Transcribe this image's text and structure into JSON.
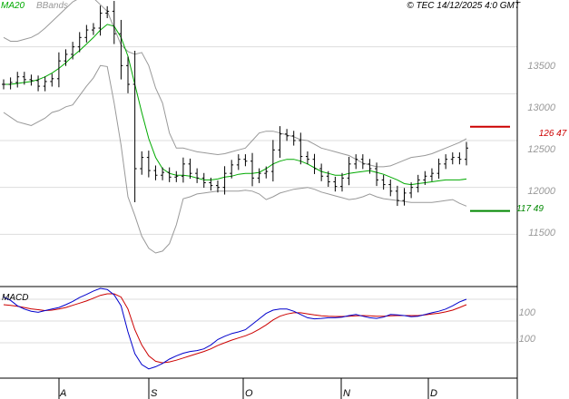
{
  "header": {
    "ma_label": "MA20",
    "bbands_label": "BBands",
    "copyright": "© TEC 14/12/2025 4:0 GMT"
  },
  "price_panel": {
    "y_ticks": [
      "13500",
      "13000",
      "12500",
      "12000",
      "11500"
    ],
    "resistance": {
      "value": 12647,
      "label": "126 47",
      "color": "#cc0000"
    },
    "support": {
      "value": 11749,
      "label": "117 49",
      "color": "#008800"
    }
  },
  "macd_panel": {
    "label": "MACD",
    "y_ticks": [
      "100",
      "-100"
    ]
  },
  "x_axis": {
    "months": [
      "A",
      "S",
      "O",
      "N",
      "D"
    ]
  },
  "colors": {
    "bar": "#000000",
    "ma20": "#00aa00",
    "bbands": "#999999",
    "grid": "#dddddd",
    "macd": "#0000cc",
    "signal": "#cc0000"
  },
  "chart_data": [
    {
      "type": "line",
      "title": "",
      "y_unit": "price",
      "ylim": [
        11000,
        14000
      ],
      "x": [
        0,
        2,
        4,
        6,
        8,
        10,
        12,
        14,
        16,
        18,
        20,
        22,
        24,
        26,
        28,
        30,
        32,
        34,
        36,
        38,
        40,
        42,
        44,
        46,
        48,
        50,
        52,
        54,
        56,
        58,
        60,
        62,
        64,
        66,
        68,
        70,
        72,
        74,
        76,
        78,
        80,
        82,
        84,
        86,
        88,
        90,
        92,
        94,
        96,
        98,
        100,
        102,
        104,
        106,
        108,
        110,
        112,
        114,
        116,
        118,
        120,
        122,
        124,
        126,
        128,
        130,
        132,
        134
      ],
      "series": [
        {
          "name": "",
          "values": [
            13100,
            13120,
            13180,
            13150,
            13140,
            13080,
            13130,
            13160,
            13350,
            13420,
            13500,
            13600,
            13680,
            13700,
            13860,
            13880,
            13640,
            13300,
            13100,
            12200,
            12320,
            12180,
            12130,
            12160,
            12110,
            12120,
            12250,
            12150,
            12100,
            12050,
            12020,
            12000,
            12150,
            12240,
            12300,
            12280,
            12100,
            12150,
            12170,
            12400,
            12570,
            12550,
            12500,
            12330,
            12300,
            12200,
            12120,
            12060,
            12010,
            12100,
            12250,
            12300,
            12250,
            12200,
            12080,
            12030,
            11960,
            11860,
            11940,
            12000,
            12080,
            12120,
            12150,
            12250,
            12300,
            12320,
            12300,
            12420
          ]
        },
        {
          "name": "MA20",
          "values": [
            13100,
            13100,
            13110,
            13120,
            13130,
            13150,
            13180,
            13220,
            13270,
            13330,
            13400,
            13460,
            13530,
            13600,
            13680,
            13740,
            13720,
            13600,
            13400,
            13100,
            12800,
            12520,
            12320,
            12200,
            12150,
            12130,
            12130,
            12120,
            12100,
            12080,
            12080,
            12090,
            12110,
            12120,
            12140,
            12150,
            12150,
            12160,
            12200,
            12250,
            12280,
            12300,
            12300,
            12280,
            12250,
            12210,
            12170,
            12150,
            12130,
            12130,
            12150,
            12160,
            12170,
            12180,
            12160,
            12140,
            12110,
            12080,
            12040,
            12030,
            12040,
            12050,
            12060,
            12070,
            12080,
            12080,
            12080,
            12090
          ]
        },
        {
          "name": "BBands",
          "values": [
            13600,
            13560,
            13560,
            13580,
            13600,
            13640,
            13700,
            13770,
            13840,
            13910,
            13980,
            14020,
            14040,
            14020,
            13950,
            13880,
            13700,
            13520,
            13450,
            13420,
            13440,
            13300,
            13060,
            12900,
            12580,
            12420,
            12420,
            12400,
            12380,
            12370,
            12360,
            12350,
            12360,
            12380,
            12400,
            12420,
            12500,
            12580,
            12600,
            12600,
            12580,
            12560,
            12540,
            12510,
            12500,
            12460,
            12420,
            12400,
            12380,
            12360,
            12340,
            12300,
            12260,
            12240,
            12220,
            12220,
            12230,
            12260,
            12290,
            12320,
            12330,
            12340,
            12360,
            12390,
            12420,
            12450,
            12480,
            12520
          ]
        },
        {
          "name": "BBands",
          "values": [
            12800,
            12750,
            12700,
            12680,
            12660,
            12700,
            12740,
            12800,
            12820,
            12860,
            12880,
            12980,
            13080,
            13170,
            13300,
            13290,
            12900,
            12450,
            11900,
            11700,
            11480,
            11350,
            11300,
            11320,
            11400,
            11600,
            11880,
            11900,
            11930,
            11940,
            11950,
            11960,
            11960,
            11960,
            11960,
            11970,
            11960,
            11930,
            11870,
            11900,
            11940,
            11960,
            11980,
            11990,
            12000,
            11980,
            11950,
            11930,
            11910,
            11890,
            11870,
            11880,
            11900,
            11930,
            11900,
            11880,
            11870,
            11860,
            11850,
            11840,
            11840,
            11840,
            11840,
            11850,
            11860,
            11870,
            11830,
            11800
          ]
        }
      ]
    },
    {
      "type": "line",
      "title": "MACD",
      "ylim": [
        -250,
        150
      ],
      "x": [
        0,
        2,
        4,
        6,
        8,
        10,
        12,
        14,
        16,
        18,
        20,
        22,
        24,
        26,
        28,
        30,
        32,
        34,
        36,
        38,
        40,
        42,
        44,
        46,
        48,
        50,
        52,
        54,
        56,
        58,
        60,
        62,
        64,
        66,
        68,
        70,
        72,
        74,
        76,
        78,
        80,
        82,
        84,
        86,
        88,
        90,
        92,
        94,
        96,
        98,
        100,
        102,
        104,
        106,
        108,
        110,
        112,
        114,
        116,
        118,
        120,
        122,
        124,
        126,
        128,
        130,
        132,
        134
      ],
      "series": [
        {
          "name": "",
          "values": [
            110,
            95,
            70,
            55,
            45,
            40,
            48,
            55,
            62,
            75,
            90,
            108,
            122,
            138,
            150,
            145,
            120,
            70,
            -50,
            -150,
            -200,
            -220,
            -210,
            -195,
            -175,
            -160,
            -148,
            -140,
            -136,
            -128,
            -110,
            -85,
            -70,
            -58,
            -50,
            -40,
            -15,
            10,
            35,
            50,
            55,
            55,
            45,
            30,
            15,
            10,
            12,
            15,
            15,
            18,
            25,
            30,
            22,
            15,
            12,
            18,
            30,
            28,
            25,
            20,
            22,
            30,
            38,
            45,
            55,
            70,
            88,
            100
          ]
        },
        {
          "name": "",
          "values": [
            75,
            72,
            68,
            62,
            56,
            52,
            48,
            50,
            55,
            62,
            72,
            82,
            92,
            105,
            118,
            125,
            125,
            110,
            55,
            -40,
            -110,
            -160,
            -185,
            -192,
            -188,
            -180,
            -170,
            -160,
            -150,
            -140,
            -128,
            -112,
            -100,
            -88,
            -78,
            -68,
            -55,
            -38,
            -18,
            5,
            22,
            32,
            38,
            38,
            33,
            28,
            24,
            22,
            21,
            21,
            22,
            24,
            25,
            24,
            22,
            22,
            24,
            25,
            25,
            25,
            25,
            28,
            32,
            36,
            42,
            50,
            62,
            75
          ]
        }
      ]
    }
  ]
}
